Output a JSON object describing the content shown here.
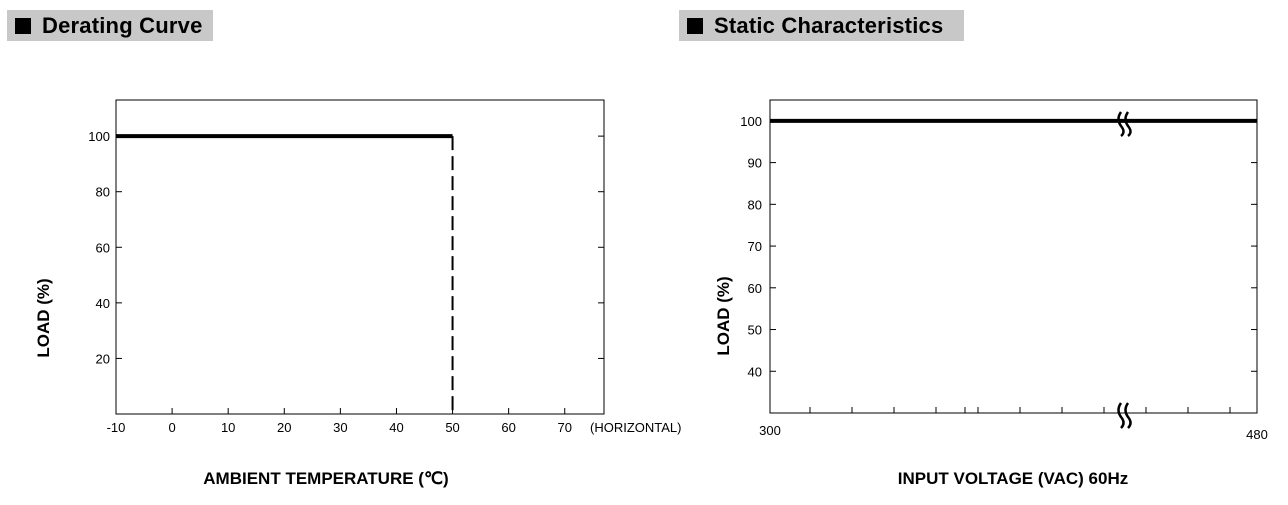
{
  "headers": {
    "derating": "Derating Curve",
    "static": "Static Characteristics"
  },
  "chart_data": [
    {
      "type": "line",
      "xlabel": "AMBIENT TEMPERATURE (℃)",
      "ylabel": "LOAD (%)",
      "x_ticks": [
        "-10",
        "0",
        "10",
        "20",
        "30",
        "40",
        "50",
        "60",
        "70"
      ],
      "x_tick_values": [
        -10,
        0,
        10,
        20,
        30,
        40,
        50,
        60,
        70
      ],
      "x_suffix": "(HORIZONTAL)",
      "y_ticks": [
        "20",
        "40",
        "60",
        "80",
        "100"
      ],
      "y_tick_values": [
        20,
        40,
        60,
        80,
        100
      ],
      "xlim": [
        -10,
        77
      ],
      "ylim": [
        0,
        113
      ],
      "series": [
        {
          "style": "solid",
          "x": [
            -10,
            50
          ],
          "y": [
            100,
            100
          ]
        },
        {
          "style": "dashed",
          "x": [
            50,
            50
          ],
          "y": [
            100,
            0
          ]
        }
      ],
      "grid": false
    },
    {
      "type": "line",
      "xlabel": "INPUT VOLTAGE (VAC) 60Hz",
      "ylabel": "LOAD (%)",
      "x_ticks": [
        "300",
        "480"
      ],
      "x_tick_values": [
        300,
        480
      ],
      "y_ticks": [
        "40",
        "50",
        "60",
        "70",
        "80",
        "90",
        "100"
      ],
      "y_tick_values": [
        40,
        50,
        60,
        70,
        80,
        90,
        100
      ],
      "xlim": [
        300,
        480
      ],
      "ylim": [
        30,
        105
      ],
      "axis_break": true,
      "series": [
        {
          "style": "solid",
          "x": [
            300,
            480
          ],
          "y": [
            100,
            100
          ]
        }
      ],
      "grid": false
    }
  ]
}
